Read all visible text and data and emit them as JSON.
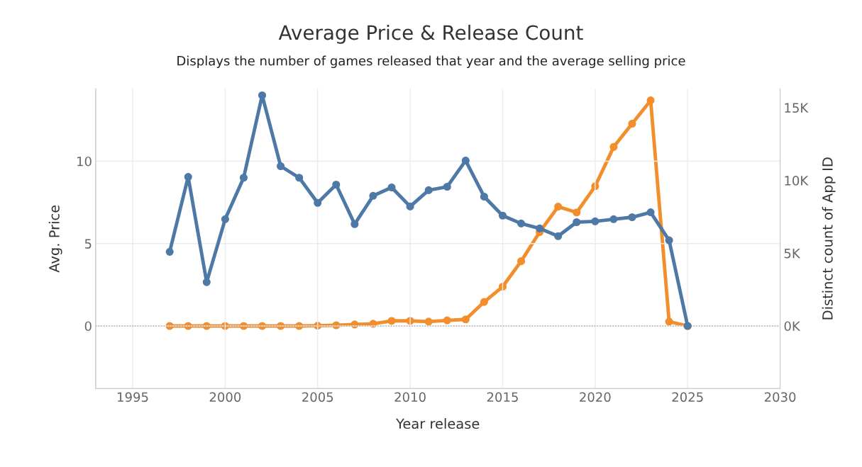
{
  "chart_data": {
    "type": "line",
    "title": "Average Price & Release Count",
    "subtitle": "Displays the number of games released that year and the average selling price",
    "xlabel": "Year release",
    "ylabel": "Avg. Price",
    "y2label": "Distinct count of App ID",
    "x": [
      1997,
      1998,
      1999,
      2000,
      2001,
      2002,
      2003,
      2004,
      2005,
      2006,
      2007,
      2008,
      2009,
      2010,
      2011,
      2012,
      2013,
      2014,
      2015,
      2016,
      2017,
      2018,
      2019,
      2020,
      2021,
      2022,
      2023,
      2024,
      2025
    ],
    "series": [
      {
        "color": "#4e79a7",
        "values": [
          4.5,
          9.05,
          2.66,
          6.48,
          9.0,
          14.0,
          9.7,
          9.0,
          7.47,
          8.58,
          6.18,
          7.9,
          8.41,
          7.25,
          8.24,
          8.45,
          10.04,
          7.85,
          6.7,
          6.22,
          5.92,
          5.45,
          6.3,
          6.35,
          6.48,
          6.6,
          6.9,
          5.2,
          0
        ]
      },
      {
        "color": "#f28e2b",
        "axis": "y2",
        "values": [
          0,
          0,
          0,
          0,
          0,
          0,
          0,
          0,
          20,
          50,
          100,
          150,
          350,
          350,
          300,
          380,
          450,
          1650,
          2700,
          4450,
          6450,
          8200,
          7800,
          9600,
          12300,
          13900,
          15500,
          300,
          0
        ]
      }
    ],
    "xlim": [
      1993,
      2030
    ],
    "xticks": [
      1995,
      2000,
      2005,
      2010,
      2015,
      2020,
      2025,
      2030
    ],
    "ylim": [
      -3.8,
      14.4
    ],
    "yticks": [
      0,
      5,
      10
    ],
    "y2lim": [
      -4300,
      16300
    ],
    "y2ticks": [
      {
        "value": 0,
        "label": "0K"
      },
      {
        "value": 5000,
        "label": "5K"
      },
      {
        "value": 10000,
        "label": "10K"
      },
      {
        "value": 15000,
        "label": "15K"
      }
    ],
    "ref_lines": [
      {
        "axis": "y",
        "value": 0,
        "color": "#aaaaaa",
        "line_style": "dotted"
      }
    ],
    "grid": true,
    "marker": "circle",
    "line_style": "solid"
  }
}
